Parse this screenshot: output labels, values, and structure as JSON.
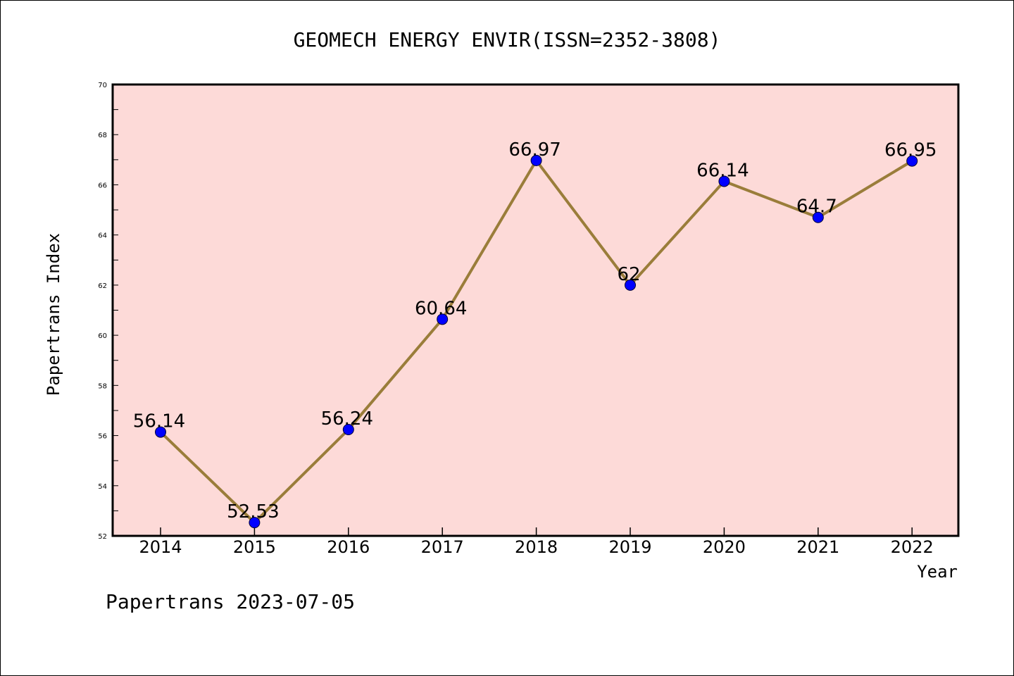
{
  "chart_data": {
    "type": "line",
    "title": "GEOMECH ENERGY ENVIR(ISSN=2352-3808)",
    "xlabel": "Year",
    "ylabel": "Papertrans Index",
    "x": [
      "2014",
      "2015",
      "2016",
      "2017",
      "2018",
      "2019",
      "2020",
      "2021",
      "2022"
    ],
    "series": [
      {
        "values": [
          56.14,
          52.53,
          56.24,
          60.64,
          66.97,
          62,
          66.14,
          64.7,
          66.95
        ],
        "labels": [
          "56.14",
          "52.53",
          "56.24",
          "60.64",
          "66.97",
          "62",
          "66.14",
          "64.7",
          "66.95"
        ],
        "line_color": "#9a7d3a",
        "marker_color": "#0000ff"
      }
    ],
    "ylim": [
      52,
      70
    ],
    "yticks": [
      "52",
      "54",
      "56",
      "58",
      "60",
      "62",
      "64",
      "66",
      "68",
      "70"
    ],
    "plot_background": "#fddad8",
    "grid": false,
    "legend": "none"
  },
  "footer": {
    "text": "Papertrans 2023-07-05"
  }
}
